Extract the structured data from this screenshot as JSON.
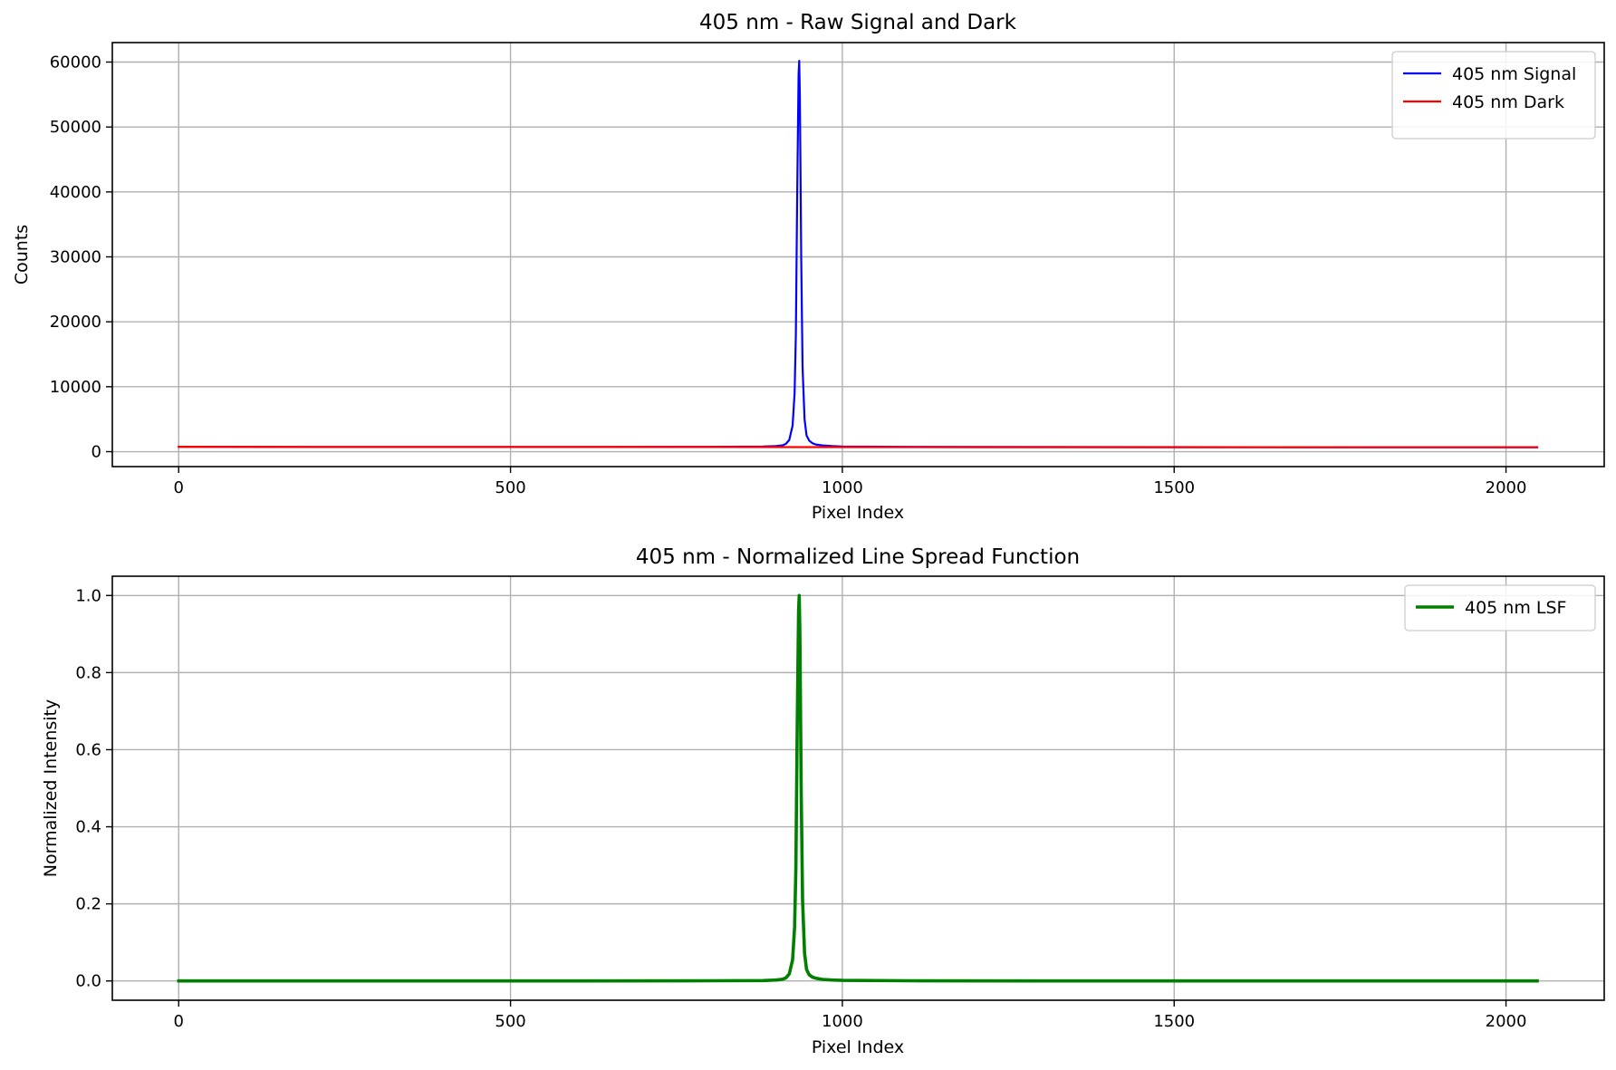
{
  "chart_data": [
    {
      "type": "line",
      "title": "405 nm - Raw Signal and Dark",
      "xlabel": "Pixel Index",
      "ylabel": "Counts",
      "xlim": [
        -100,
        2148
      ],
      "ylim": [
        -2300,
        63000
      ],
      "xticks": [
        0,
        500,
        1000,
        1500,
        2000
      ],
      "yticks": [
        0,
        10000,
        20000,
        30000,
        40000,
        50000,
        60000
      ],
      "grid": true,
      "legend_position": "top-right",
      "series": [
        {
          "name": "405 nm Signal",
          "color": "#0000ff",
          "x": [
            0,
            200,
            400,
            600,
            800,
            880,
            900,
            910,
            915,
            920,
            925,
            928,
            930,
            932,
            934,
            935,
            936,
            938,
            940,
            943,
            946,
            950,
            955,
            960,
            970,
            985,
            1000,
            1100,
            1300,
            1500,
            1700,
            1900,
            2047
          ],
          "y": [
            760,
            730,
            720,
            720,
            740,
            790,
            860,
            980,
            1200,
            1800,
            4000,
            9000,
            18000,
            40000,
            58000,
            60200,
            55000,
            30000,
            13000,
            5000,
            2500,
            1700,
            1300,
            1100,
            960,
            860,
            800,
            740,
            720,
            700,
            690,
            680,
            680
          ]
        },
        {
          "name": "405 nm Dark",
          "color": "#ff0000",
          "x": [
            0,
            200,
            400,
            600,
            800,
            1000,
            1200,
            1400,
            1600,
            1800,
            2047
          ],
          "y": [
            760,
            720,
            710,
            710,
            710,
            700,
            690,
            680,
            680,
            670,
            670
          ]
        }
      ]
    },
    {
      "type": "line",
      "title": "405 nm - Normalized Line Spread Function",
      "xlabel": "Pixel Index",
      "ylabel": "Normalized Intensity",
      "xlim": [
        -100,
        2148
      ],
      "ylim": [
        -0.05,
        1.05
      ],
      "xticks": [
        0,
        500,
        1000,
        1500,
        2000
      ],
      "yticks": [
        "0.0",
        "0.2",
        "0.4",
        "0.6",
        "0.8",
        "1.0"
      ],
      "grid": true,
      "legend_position": "top-right",
      "series": [
        {
          "name": "405 nm LSF",
          "color": "#008000",
          "x": [
            0,
            200,
            400,
            600,
            800,
            880,
            900,
            910,
            915,
            920,
            925,
            928,
            930,
            932,
            934,
            935,
            936,
            938,
            940,
            943,
            946,
            950,
            955,
            960,
            970,
            985,
            1000,
            1100,
            1300,
            1500,
            1700,
            1900,
            2047
          ],
          "y": [
            0.0,
            0.0,
            0.0,
            0.0,
            0.0005,
            0.001,
            0.0025,
            0.0045,
            0.008,
            0.018,
            0.055,
            0.14,
            0.29,
            0.66,
            0.96,
            1.0,
            0.91,
            0.49,
            0.21,
            0.072,
            0.03,
            0.016,
            0.01,
            0.007,
            0.004,
            0.0025,
            0.0015,
            0.0005,
            0.0,
            0.0,
            0.0,
            0.0,
            0.0
          ]
        }
      ]
    }
  ]
}
